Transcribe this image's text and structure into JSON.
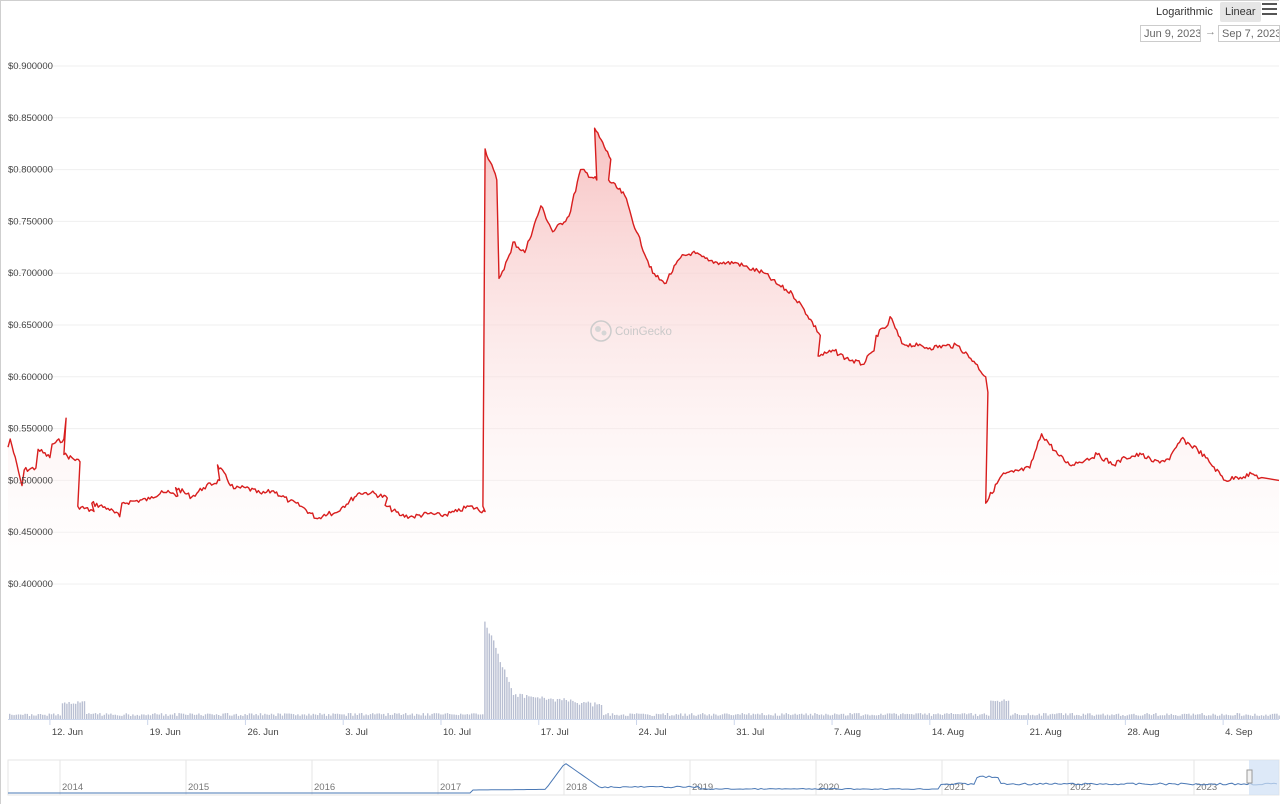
{
  "controls": {
    "log_label": "Logarithmic",
    "linear_label": "Linear",
    "date_from": "Jun 9, 2023",
    "date_to": "Sep 7, 2023",
    "arrow": "→",
    "menu_icon": "hamburger-menu-icon"
  },
  "watermark": "CoinGecko",
  "colors": {
    "line": "#d81e1e",
    "fill_top": "#f6b8b8",
    "volume": "#b9bfd2",
    "navigator": "#4a78b5"
  },
  "chart_data": {
    "type": "line",
    "title": "",
    "xlabel": "",
    "ylabel": "",
    "grid": true,
    "ylim": [
      0.4,
      0.9
    ],
    "yticks": [
      0.4,
      0.45,
      0.5,
      0.55,
      0.6,
      0.65,
      0.7,
      0.75,
      0.8,
      0.85,
      0.9
    ],
    "ytick_labels": [
      "$0.400000",
      "$0.450000",
      "$0.500000",
      "$0.550000",
      "$0.600000",
      "$0.650000",
      "$0.700000",
      "$0.750000",
      "$0.800000",
      "$0.850000",
      "$0.900000"
    ],
    "x_range": [
      "2023-06-09",
      "2023-09-07"
    ],
    "xticks": [
      "2023-06-12",
      "2023-06-19",
      "2023-06-26",
      "2023-07-03",
      "2023-07-10",
      "2023-07-17",
      "2023-07-24",
      "2023-07-31",
      "2023-08-07",
      "2023-08-14",
      "2023-08-21",
      "2023-08-28",
      "2023-09-04"
    ],
    "xtick_labels": [
      "12. Jun",
      "19. Jun",
      "26. Jun",
      "3. Jul",
      "10. Jul",
      "17. Jul",
      "24. Jul",
      "31. Jul",
      "7. Aug",
      "14. Aug",
      "21. Aug",
      "28. Aug",
      "4. Sep"
    ],
    "series": [
      {
        "values": [
          [
            "2023-06-09",
            0.532
          ],
          [
            "2023-06-09",
            0.54
          ],
          [
            "2023-06-10",
            0.495
          ],
          [
            "2023-06-10",
            0.51
          ],
          [
            "2023-06-11",
            0.512
          ],
          [
            "2023-06-11",
            0.53
          ],
          [
            "2023-06-12",
            0.522
          ],
          [
            "2023-06-12",
            0.535
          ],
          [
            "2023-06-13",
            0.54
          ],
          [
            "2023-06-13",
            0.56
          ],
          [
            "2023-06-13",
            0.525
          ],
          [
            "2023-06-14",
            0.518
          ],
          [
            "2023-06-14",
            0.475
          ],
          [
            "2023-06-15",
            0.47
          ],
          [
            "2023-06-15",
            0.478
          ],
          [
            "2023-06-16",
            0.473
          ],
          [
            "2023-06-17",
            0.465
          ],
          [
            "2023-06-17",
            0.478
          ],
          [
            "2023-06-18",
            0.48
          ],
          [
            "2023-06-19",
            0.482
          ],
          [
            "2023-06-20",
            0.49
          ],
          [
            "2023-06-21",
            0.485
          ],
          [
            "2023-06-21",
            0.493
          ],
          [
            "2023-06-22",
            0.484
          ],
          [
            "2023-06-23",
            0.493
          ],
          [
            "2023-06-24",
            0.5
          ],
          [
            "2023-06-24",
            0.515
          ],
          [
            "2023-06-25",
            0.492
          ],
          [
            "2023-06-26",
            0.493
          ],
          [
            "2023-06-27",
            0.487
          ],
          [
            "2023-06-28",
            0.49
          ],
          [
            "2023-06-29",
            0.48
          ],
          [
            "2023-06-30",
            0.475
          ],
          [
            "2023-07-01",
            0.463
          ],
          [
            "2023-07-02",
            0.47
          ],
          [
            "2023-07-02",
            0.466
          ],
          [
            "2023-07-03",
            0.475
          ],
          [
            "2023-07-04",
            0.488
          ],
          [
            "2023-07-05",
            0.488
          ],
          [
            "2023-07-06",
            0.483
          ],
          [
            "2023-07-06",
            0.476
          ],
          [
            "2023-07-07",
            0.466
          ],
          [
            "2023-07-08",
            0.465
          ],
          [
            "2023-07-09",
            0.468
          ],
          [
            "2023-07-10",
            0.466
          ],
          [
            "2023-07-11",
            0.47
          ],
          [
            "2023-07-12",
            0.475
          ],
          [
            "2023-07-13",
            0.47
          ],
          [
            "2023-07-13",
            0.475
          ],
          [
            "2023-07-13",
            0.82
          ],
          [
            "2023-07-14",
            0.79
          ],
          [
            "2023-07-14",
            0.695
          ],
          [
            "2023-07-15",
            0.72
          ],
          [
            "2023-07-15",
            0.73
          ],
          [
            "2023-07-16",
            0.72
          ],
          [
            "2023-07-17",
            0.765
          ],
          [
            "2023-07-18",
            0.74
          ],
          [
            "2023-07-19",
            0.755
          ],
          [
            "2023-07-20",
            0.8
          ],
          [
            "2023-07-21",
            0.79
          ],
          [
            "2023-07-21",
            0.84
          ],
          [
            "2023-07-22",
            0.81
          ],
          [
            "2023-07-22",
            0.79
          ],
          [
            "2023-07-23",
            0.775
          ],
          [
            "2023-07-24",
            0.74
          ],
          [
            "2023-07-25",
            0.7
          ],
          [
            "2023-07-26",
            0.69
          ],
          [
            "2023-07-27",
            0.715
          ],
          [
            "2023-07-28",
            0.72
          ],
          [
            "2023-07-29",
            0.712
          ],
          [
            "2023-07-30",
            0.71
          ],
          [
            "2023-07-31",
            0.71
          ],
          [
            "2023-08-01",
            0.705
          ],
          [
            "2023-08-02",
            0.7
          ],
          [
            "2023-08-03",
            0.69
          ],
          [
            "2023-08-04",
            0.68
          ],
          [
            "2023-08-05",
            0.665
          ],
          [
            "2023-08-06",
            0.64
          ],
          [
            "2023-08-06",
            0.62
          ],
          [
            "2023-08-07",
            0.625
          ],
          [
            "2023-08-08",
            0.618
          ],
          [
            "2023-08-09",
            0.612
          ],
          [
            "2023-08-10",
            0.625
          ],
          [
            "2023-08-10",
            0.64
          ],
          [
            "2023-08-11",
            0.65
          ],
          [
            "2023-08-11",
            0.658
          ],
          [
            "2023-08-12",
            0.632
          ],
          [
            "2023-08-13",
            0.63
          ],
          [
            "2023-08-14",
            0.628
          ],
          [
            "2023-08-15",
            0.63
          ],
          [
            "2023-08-16",
            0.63
          ],
          [
            "2023-08-17",
            0.615
          ],
          [
            "2023-08-18",
            0.6
          ],
          [
            "2023-08-18",
            0.585
          ],
          [
            "2023-08-18",
            0.478
          ],
          [
            "2023-08-19",
            0.505
          ],
          [
            "2023-08-20",
            0.508
          ],
          [
            "2023-08-21",
            0.512
          ],
          [
            "2023-08-22",
            0.545
          ],
          [
            "2023-08-23",
            0.525
          ],
          [
            "2023-08-24",
            0.515
          ],
          [
            "2023-08-25",
            0.52
          ],
          [
            "2023-08-26",
            0.525
          ],
          [
            "2023-08-27",
            0.515
          ],
          [
            "2023-08-28",
            0.522
          ],
          [
            "2023-08-29",
            0.525
          ],
          [
            "2023-08-30",
            0.518
          ],
          [
            "2023-08-31",
            0.52
          ],
          [
            "2023-09-01",
            0.54
          ],
          [
            "2023-09-02",
            0.53
          ],
          [
            "2023-09-03",
            0.518
          ],
          [
            "2023-09-04",
            0.5
          ],
          [
            "2023-09-05",
            0.503
          ],
          [
            "2023-09-06",
            0.506
          ],
          [
            "2023-09-07",
            0.5
          ]
        ]
      }
    ],
    "navigator": {
      "tick_labels": [
        "2014",
        "2015",
        "2016",
        "2017",
        "2018",
        "2019",
        "2020",
        "2021",
        "2022",
        "2023"
      ]
    }
  }
}
